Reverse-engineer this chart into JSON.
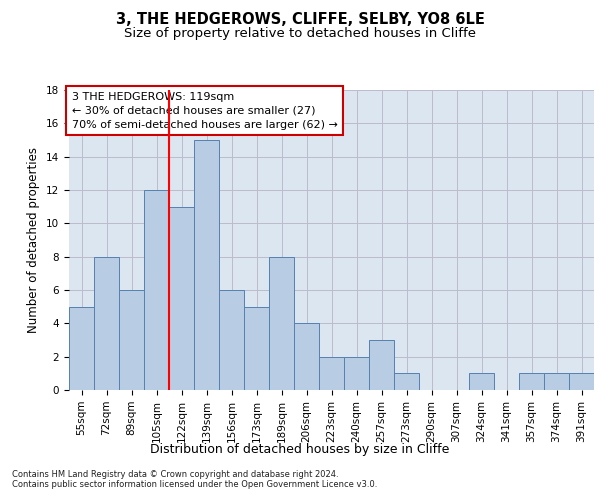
{
  "title1": "3, THE HEDGEROWS, CLIFFE, SELBY, YO8 6LE",
  "title2": "Size of property relative to detached houses in Cliffe",
  "xlabel": "Distribution of detached houses by size in Cliffe",
  "ylabel": "Number of detached properties",
  "categories": [
    "55sqm",
    "72sqm",
    "89sqm",
    "105sqm",
    "122sqm",
    "139sqm",
    "156sqm",
    "173sqm",
    "189sqm",
    "206sqm",
    "223sqm",
    "240sqm",
    "257sqm",
    "273sqm",
    "290sqm",
    "307sqm",
    "324sqm",
    "341sqm",
    "357sqm",
    "374sqm",
    "391sqm"
  ],
  "values": [
    5,
    8,
    6,
    12,
    11,
    15,
    6,
    5,
    8,
    4,
    2,
    2,
    3,
    1,
    0,
    0,
    1,
    0,
    1,
    1,
    1
  ],
  "bar_color": "#b8cce4",
  "bar_edge_color": "#5580b0",
  "bar_edge_width": 0.7,
  "grid_color": "#bbbbcc",
  "plot_bg_color": "#dce6f1",
  "red_line_x": 3.5,
  "annotation_text": "3 THE HEDGEROWS: 119sqm\n← 30% of detached houses are smaller (27)\n70% of semi-detached houses are larger (62) →",
  "annotation_box_color": "#ffffff",
  "annotation_border_color": "#cc0000",
  "footnote": "Contains HM Land Registry data © Crown copyright and database right 2024.\nContains public sector information licensed under the Open Government Licence v3.0.",
  "ylim": [
    0,
    18
  ],
  "yticks": [
    0,
    2,
    4,
    6,
    8,
    10,
    12,
    14,
    16,
    18
  ],
  "title1_fontsize": 10.5,
  "title2_fontsize": 9.5,
  "xlabel_fontsize": 9,
  "ylabel_fontsize": 8.5,
  "tick_fontsize": 7.5,
  "annotation_fontsize": 8,
  "footnote_fontsize": 6
}
